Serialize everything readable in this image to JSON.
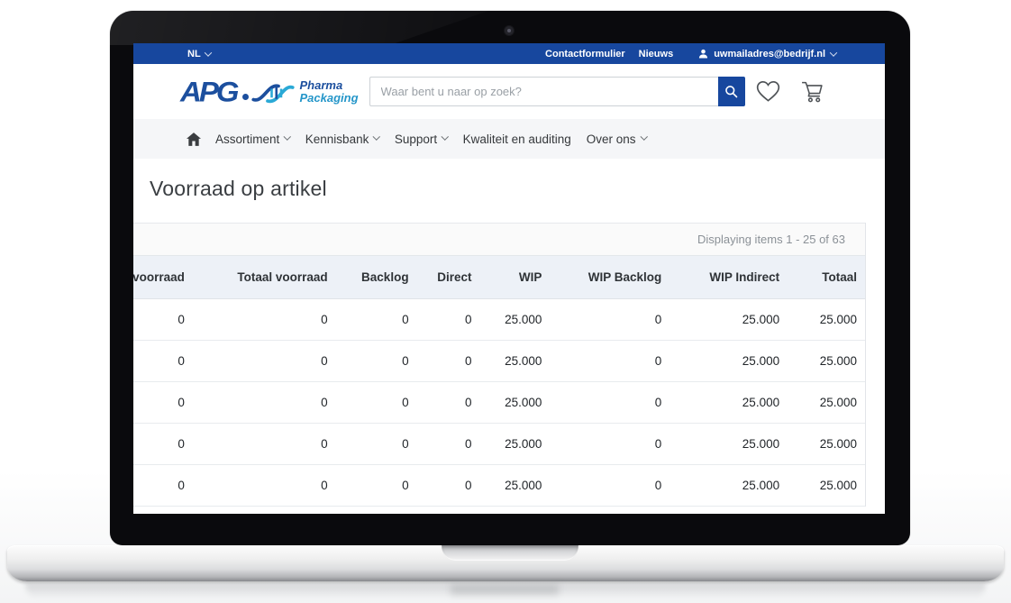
{
  "topbar": {
    "language_label": "NL",
    "link_contact": "Contactformulier",
    "link_news": "Nieuws",
    "account_label": "uwmailadres@bedrijf.nl"
  },
  "header": {
    "logo_acronym": "APG",
    "logo_brand_top": "Pharma",
    "logo_brand_bottom": "Packaging",
    "search_placeholder": "Waar bent u naar op zoek?"
  },
  "nav": {
    "items": [
      {
        "label": "Assortiment"
      },
      {
        "label": "Kennisbank"
      },
      {
        "label": "Support"
      },
      {
        "label": "Kwaliteit en auditing"
      },
      {
        "label": "Over ons"
      }
    ]
  },
  "page": {
    "title": "Voorraad op artikel"
  },
  "table": {
    "pagination": "Displaying items 1 - 25 of 63",
    "columns": [
      "voorraad",
      "Totaal voorraad",
      "Backlog",
      "Direct",
      "WIP",
      "WIP Backlog",
      "WIP Indirect",
      "Totaal"
    ],
    "rows": [
      [
        "0",
        "0",
        "0",
        "0",
        "25.000",
        "0",
        "25.000",
        "25.000"
      ],
      [
        "0",
        "0",
        "0",
        "0",
        "25.000",
        "0",
        "25.000",
        "25.000"
      ],
      [
        "0",
        "0",
        "0",
        "0",
        "25.000",
        "0",
        "25.000",
        "25.000"
      ],
      [
        "0",
        "0",
        "0",
        "0",
        "25.000",
        "0",
        "25.000",
        "25.000"
      ],
      [
        "0",
        "0",
        "0",
        "0",
        "25.000",
        "0",
        "25.000",
        "25.000"
      ]
    ]
  },
  "colors": {
    "topbar_blue": "#17479e",
    "accent_blue": "#17479e",
    "logo_blue": "#1c4f9e",
    "logo_teal": "#2aa9d6",
    "table_header_bg": "#edf1f7",
    "nav_bg": "#f5f6f8"
  }
}
